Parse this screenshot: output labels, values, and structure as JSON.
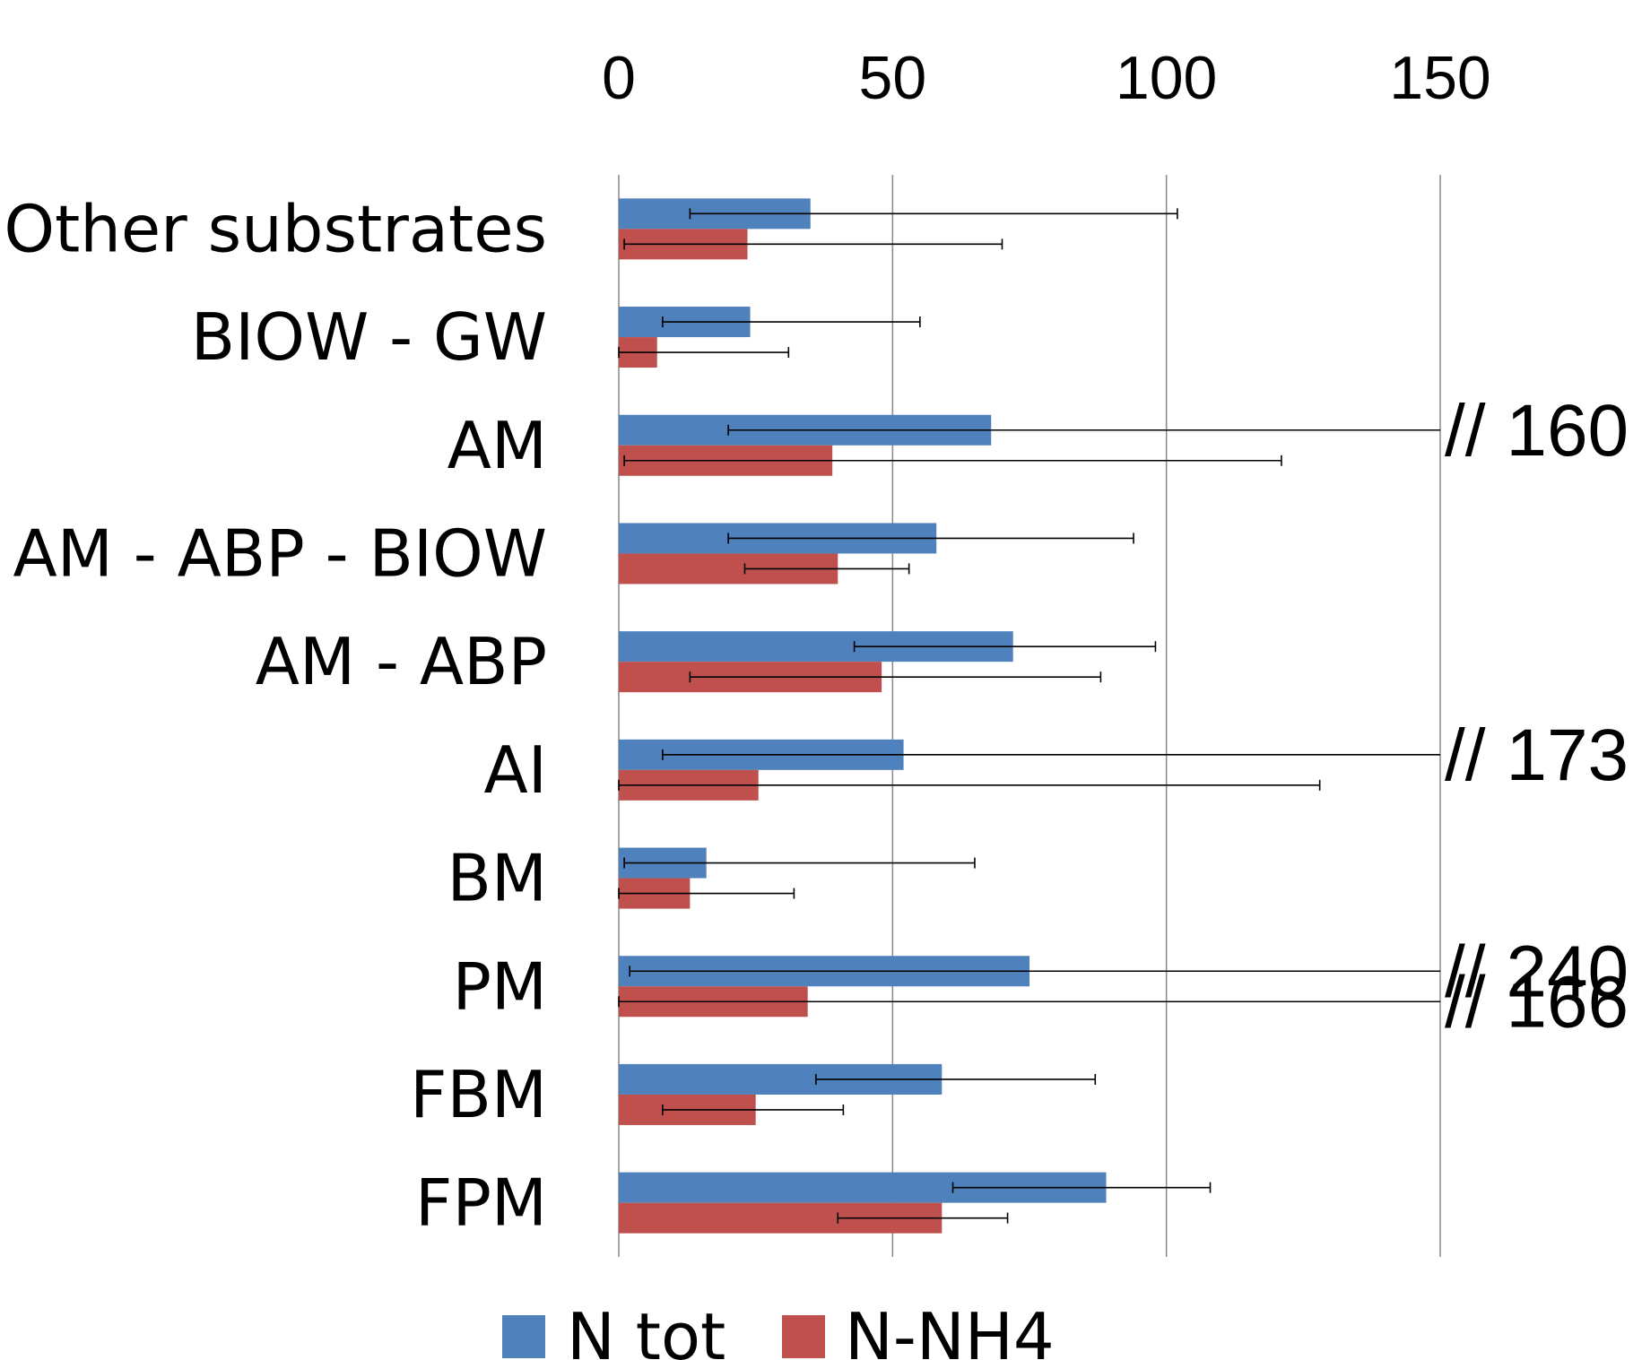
{
  "chart_data": {
    "type": "bar",
    "orientation": "horizontal",
    "categories": [
      "Other substrates",
      "BIOW - GW",
      "AM",
      "AM - ABP - BIOW",
      "AM - ABP",
      "AI",
      "BM",
      "PM",
      "FBM",
      "FPM"
    ],
    "series": [
      {
        "name": "N tot",
        "color": "#4F81BD",
        "values": [
          35,
          24,
          68,
          58,
          72,
          52,
          16,
          75,
          59,
          89
        ],
        "error_low": [
          13,
          8,
          20,
          20,
          43,
          8,
          1,
          2,
          36,
          61
        ],
        "error_high": [
          102,
          55,
          160,
          94,
          98,
          173,
          65,
          240,
          87,
          108
        ]
      },
      {
        "name": "N-NH4",
        "color": "#C0504D",
        "values": [
          23.5,
          7,
          39,
          40,
          48,
          25.5,
          13,
          34.5,
          25,
          59
        ],
        "error_low": [
          1,
          0,
          1,
          23,
          13,
          0,
          0,
          0,
          8,
          40
        ],
        "error_high": [
          70,
          31,
          121,
          53,
          88,
          128,
          32,
          166,
          41,
          71
        ]
      }
    ],
    "xlim": [
      0,
      150
    ],
    "xticks": [
      "0",
      "50",
      "100",
      "150"
    ],
    "xaxis_position": "top",
    "grid": true,
    "legend_position": "bottom",
    "break_annotations": [
      {
        "category": "AM",
        "series": "N tot",
        "label": "// 160"
      },
      {
        "category": "AI",
        "series": "N tot",
        "label": "// 173"
      },
      {
        "category": "PM",
        "series": "N tot",
        "label": "// 240"
      },
      {
        "category": "PM",
        "series": "N-NH4",
        "label": "// 166"
      }
    ]
  }
}
